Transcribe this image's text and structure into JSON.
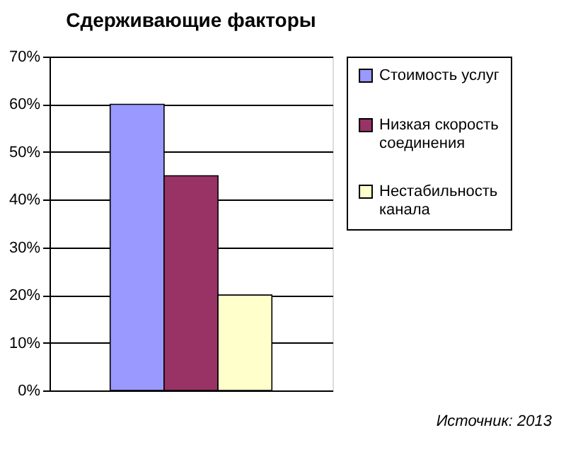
{
  "chart_data": {
    "type": "bar",
    "title": "Сдерживающие факторы",
    "categories": [
      null
    ],
    "series": [
      {
        "name": "Стоимость услуг",
        "color": "#9999ff",
        "values": [
          60
        ]
      },
      {
        "name": "Низкая скорость соединения",
        "color": "#993366",
        "values": [
          45
        ]
      },
      {
        "name": "Нестабильность канала",
        "color": "#ffffcc",
        "values": [
          20
        ]
      }
    ],
    "ylim": [
      0,
      70
    ],
    "yticks": [
      {
        "value": 0,
        "label": "0%"
      },
      {
        "value": 10,
        "label": "10%"
      },
      {
        "value": 20,
        "label": "20%"
      },
      {
        "value": 30,
        "label": "30%"
      },
      {
        "value": 40,
        "label": "40%"
      },
      {
        "value": 50,
        "label": "50%"
      },
      {
        "value": 60,
        "label": "60%"
      },
      {
        "value": 70,
        "label": "70%"
      }
    ],
    "grid": "y",
    "legend": "right",
    "annotations": [
      "Источник: 2013"
    ]
  }
}
